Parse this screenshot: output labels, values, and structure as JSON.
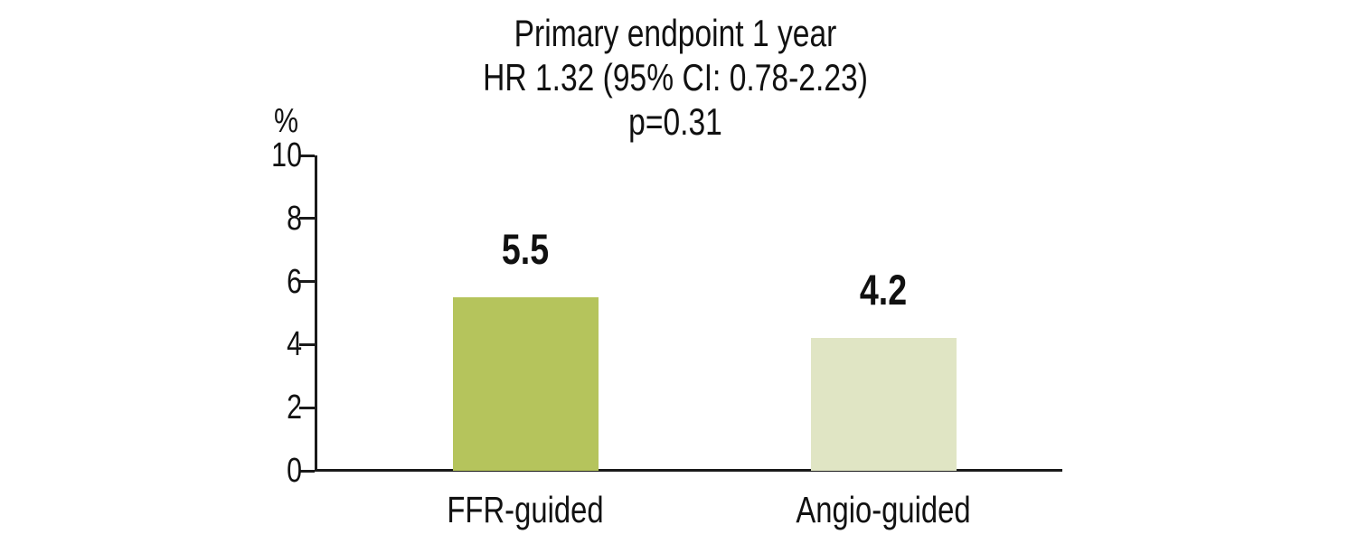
{
  "chart": {
    "title_line1": "Primary endpoint 1 year",
    "title_line2": "HR 1.32 (95% CI: 0.78-2.23)",
    "title_line3": "p=0.31",
    "y_axis_unit": "%"
  },
  "chart_data": {
    "type": "bar",
    "title": "Primary endpoint 1 year",
    "subtitle": "HR 1.32 (95% CI: 0.78-2.23)",
    "p_value_text": "p=0.31",
    "categories": [
      "FFR-guided",
      "Angio-guided"
    ],
    "values": [
      5.5,
      4.2
    ],
    "value_labels": [
      "5.5",
      "4.2"
    ],
    "bar_colors": [
      "#b5c45c",
      "#e0e5c4"
    ],
    "xlabel": "",
    "ylabel": "%",
    "ylim": [
      0,
      10
    ],
    "yticks": [
      0,
      2,
      4,
      6,
      8,
      10
    ],
    "grid": false,
    "legend_position": "none"
  },
  "colors": {
    "axis": "#1a1a1a",
    "text": "#111111",
    "background": "#ffffff"
  }
}
